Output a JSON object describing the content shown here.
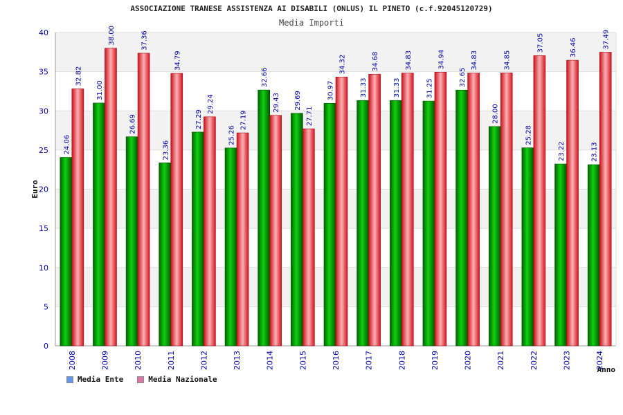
{
  "chart_data": {
    "type": "bar",
    "title": "ASSOCIAZIONE TRANESE ASSISTENZA AI DISABILI (ONLUS) IL PINETO (c.f.92045120729)",
    "subtitle": "Media Importi",
    "xlabel": "Anno",
    "ylabel": "Euro",
    "ylim": [
      0,
      40
    ],
    "yticks": [
      "0",
      "5",
      "10",
      "15",
      "20",
      "25",
      "30",
      "35",
      "40"
    ],
    "grid": true,
    "legend_position": "bottom-left",
    "categories": [
      "2008",
      "2009",
      "2010",
      "2011",
      "2012",
      "2013",
      "2014",
      "2015",
      "2016",
      "2017",
      "2018",
      "2019",
      "2020",
      "2021",
      "2022",
      "2023",
      "2024"
    ],
    "series": [
      {
        "name": "Media Ente",
        "color": "#00b000",
        "legend_color": "#6699ee",
        "values": [
          24.06,
          31.0,
          26.69,
          23.36,
          27.29,
          25.26,
          32.66,
          29.69,
          30.97,
          31.33,
          31.33,
          31.25,
          32.65,
          28.0,
          25.28,
          23.22,
          23.13
        ],
        "labels": [
          "24.06",
          "31.00",
          "26.69",
          "23.36",
          "27.29",
          "25.26",
          "32.66",
          "29.69",
          "30.97",
          "31.33",
          "31.33",
          "31.25",
          "32.65",
          "28.00",
          "25.28",
          "23.22",
          "23.13"
        ]
      },
      {
        "name": "Media Nazionale",
        "color": "#e8202a",
        "legend_color": "#dd77aa",
        "values": [
          32.82,
          38.0,
          37.36,
          34.79,
          29.24,
          27.19,
          29.43,
          27.71,
          34.32,
          34.68,
          34.83,
          34.94,
          34.83,
          34.85,
          37.05,
          36.46,
          37.49
        ],
        "labels": [
          "32.82",
          "38.00",
          "37.36",
          "34.79",
          "29.24",
          "27.19",
          "29.43",
          "27.71",
          "34.32",
          "34.68",
          "34.83",
          "34.94",
          "34.83",
          "34.85",
          "37.05",
          "36.46",
          "37.49"
        ]
      }
    ]
  }
}
